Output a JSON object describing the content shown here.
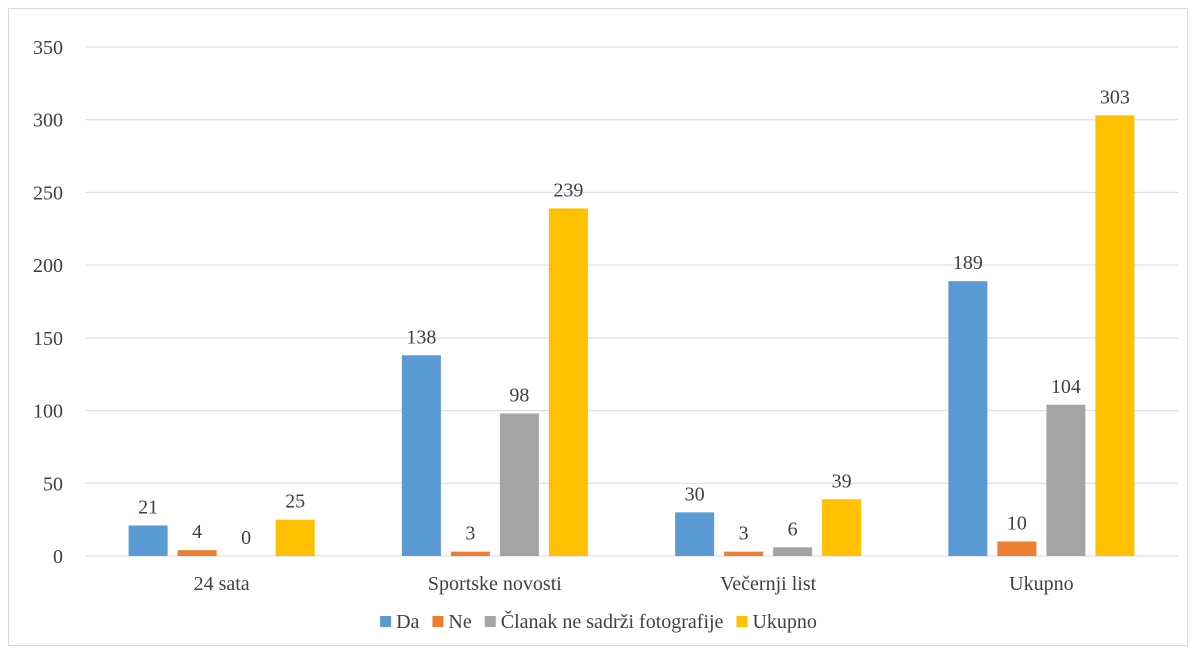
{
  "chart_data": {
    "type": "bar",
    "categories": [
      "24 sata",
      "Sportske novosti",
      "Večernji list",
      "Ukupno"
    ],
    "series": [
      {
        "name": "Da",
        "color": "#5b9bd5",
        "values": [
          21,
          138,
          30,
          189
        ]
      },
      {
        "name": "Ne",
        "color": "#ed7d31",
        "values": [
          4,
          3,
          3,
          10
        ]
      },
      {
        "name": "Članak ne sadrži fotografije",
        "color": "#a5a5a5",
        "values": [
          0,
          98,
          6,
          104
        ]
      },
      {
        "name": "Ukupno",
        "color": "#ffc000",
        "values": [
          25,
          239,
          39,
          303
        ]
      }
    ],
    "ylim": [
      0,
      350
    ],
    "yticks": [
      0,
      50,
      100,
      150,
      200,
      250,
      300,
      350
    ],
    "grid": true,
    "legend": "bottom",
    "data_labels": true
  }
}
